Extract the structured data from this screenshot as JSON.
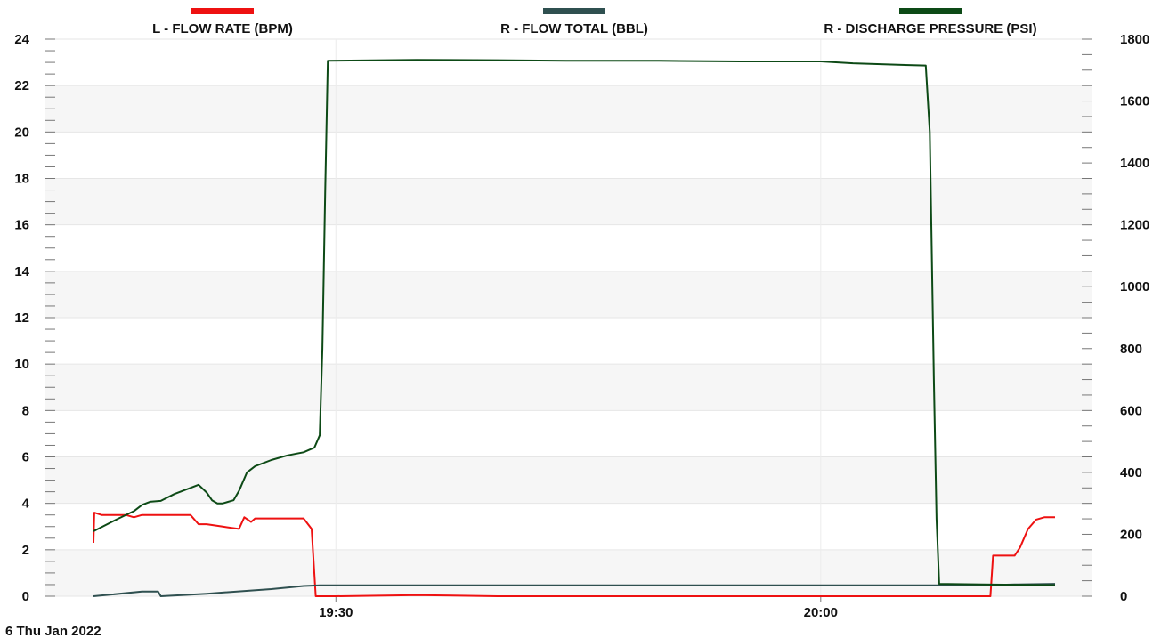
{
  "chart_data": {
    "type": "line",
    "date_label": "6 Thu  Jan 2022",
    "x_axis": {
      "unit": "time",
      "range": [
        "19:15",
        "20:20"
      ],
      "ticks": [
        "19:30",
        "20:00"
      ]
    },
    "y_left": {
      "range": [
        0,
        24
      ],
      "ticks": [
        "0",
        "2",
        "4",
        "6",
        "8",
        "10",
        "12",
        "14",
        "16",
        "18",
        "20",
        "22",
        "24"
      ],
      "banding": true
    },
    "y_right": {
      "range": [
        0,
        1800
      ],
      "ticks": [
        "0",
        "200",
        "400",
        "600",
        "800",
        "1000",
        "1200",
        "1400",
        "1600",
        "1800"
      ]
    },
    "grid": true,
    "legend": {
      "placement": "top"
    },
    "series": [
      {
        "name": "L - FLOW RATE (BPM)",
        "axis": "left",
        "color": "#ee1111",
        "points": [
          [
            "19:15:00",
            2.3
          ],
          [
            "19:15:03",
            3.6
          ],
          [
            "19:15:30",
            3.5
          ],
          [
            "19:17:00",
            3.5
          ],
          [
            "19:17:30",
            3.4
          ],
          [
            "19:18:00",
            3.5
          ],
          [
            "19:19:00",
            3.5
          ],
          [
            "19:20:00",
            3.5
          ],
          [
            "19:21:00",
            3.5
          ],
          [
            "19:21:30",
            3.1
          ],
          [
            "19:22:00",
            3.1
          ],
          [
            "19:23:00",
            3.0
          ],
          [
            "19:24:00",
            2.9
          ],
          [
            "19:24:20",
            3.4
          ],
          [
            "19:24:45",
            3.2
          ],
          [
            "19:25:00",
            3.35
          ],
          [
            "19:26:00",
            3.35
          ],
          [
            "19:27:00",
            3.35
          ],
          [
            "19:28:00",
            3.35
          ],
          [
            "19:28:30",
            2.9
          ],
          [
            "19:28:45",
            0.0
          ],
          [
            "19:30:00",
            0.0
          ],
          [
            "19:35:00",
            0.05
          ],
          [
            "19:40:00",
            0.0
          ],
          [
            "19:45:00",
            0.0
          ],
          [
            "19:50:00",
            0.0
          ],
          [
            "19:55:00",
            0.0
          ],
          [
            "20:00:00",
            0.0
          ],
          [
            "20:05:00",
            0.0
          ],
          [
            "20:08:00",
            0.0
          ],
          [
            "20:10:00",
            0.0
          ],
          [
            "20:10:30",
            0.0
          ],
          [
            "20:10:40",
            1.75
          ],
          [
            "20:11:20",
            1.75
          ],
          [
            "20:12:00",
            1.75
          ],
          [
            "20:12:20",
            2.1
          ],
          [
            "20:12:50",
            2.9
          ],
          [
            "20:13:20",
            3.3
          ],
          [
            "20:13:50",
            3.4
          ],
          [
            "20:14:30",
            3.4
          ]
        ]
      },
      {
        "name": "R - FLOW TOTAL (BBL)",
        "axis": "right",
        "color": "#2f5050",
        "points": [
          [
            "19:15:00",
            0
          ],
          [
            "19:16:00",
            5
          ],
          [
            "19:18:00",
            15
          ],
          [
            "19:19:00",
            15
          ],
          [
            "19:19:10",
            0
          ],
          [
            "19:22:00",
            8
          ],
          [
            "19:26:00",
            23
          ],
          [
            "19:28:00",
            33
          ],
          [
            "19:29:00",
            35
          ],
          [
            "19:35:00",
            35
          ],
          [
            "19:40:00",
            35
          ],
          [
            "19:50:00",
            35
          ],
          [
            "20:00:00",
            35
          ],
          [
            "20:07:00",
            35
          ],
          [
            "20:10:00",
            35
          ],
          [
            "20:12:00",
            38
          ],
          [
            "20:14:30",
            40
          ]
        ]
      },
      {
        "name": "R - DISCHARGE PRESSURE (PSI)",
        "axis": "right",
        "color": "#0d4a16",
        "points": [
          [
            "19:15:00",
            210
          ],
          [
            "19:16:30",
            250
          ],
          [
            "19:17:30",
            275
          ],
          [
            "19:18:00",
            295
          ],
          [
            "19:18:30",
            305
          ],
          [
            "19:19:10",
            308
          ],
          [
            "19:20:00",
            330
          ],
          [
            "19:21:00",
            350
          ],
          [
            "19:21:30",
            360
          ],
          [
            "19:22:00",
            335
          ],
          [
            "19:22:20",
            310
          ],
          [
            "19:22:40",
            300
          ],
          [
            "19:23:00",
            300
          ],
          [
            "19:23:40",
            310
          ],
          [
            "19:24:00",
            340
          ],
          [
            "19:24:30",
            400
          ],
          [
            "19:25:00",
            420
          ],
          [
            "19:26:00",
            440
          ],
          [
            "19:27:00",
            455
          ],
          [
            "19:28:00",
            465
          ],
          [
            "19:28:40",
            480
          ],
          [
            "19:29:00",
            520
          ],
          [
            "19:29:10",
            800
          ],
          [
            "19:29:20",
            1300
          ],
          [
            "19:29:30",
            1730
          ],
          [
            "19:35:00",
            1733
          ],
          [
            "19:40:00",
            1732
          ],
          [
            "19:45:00",
            1730
          ],
          [
            "19:50:00",
            1730
          ],
          [
            "19:55:00",
            1728
          ],
          [
            "20:00:00",
            1728
          ],
          [
            "20:02:00",
            1722
          ],
          [
            "20:05:00",
            1717
          ],
          [
            "20:06:30",
            1715
          ],
          [
            "20:06:45",
            1500
          ],
          [
            "20:07:00",
            700
          ],
          [
            "20:07:10",
            250
          ],
          [
            "20:07:20",
            40
          ],
          [
            "20:10:00",
            38
          ],
          [
            "20:12:00",
            37
          ],
          [
            "20:14:30",
            36
          ]
        ]
      }
    ]
  }
}
